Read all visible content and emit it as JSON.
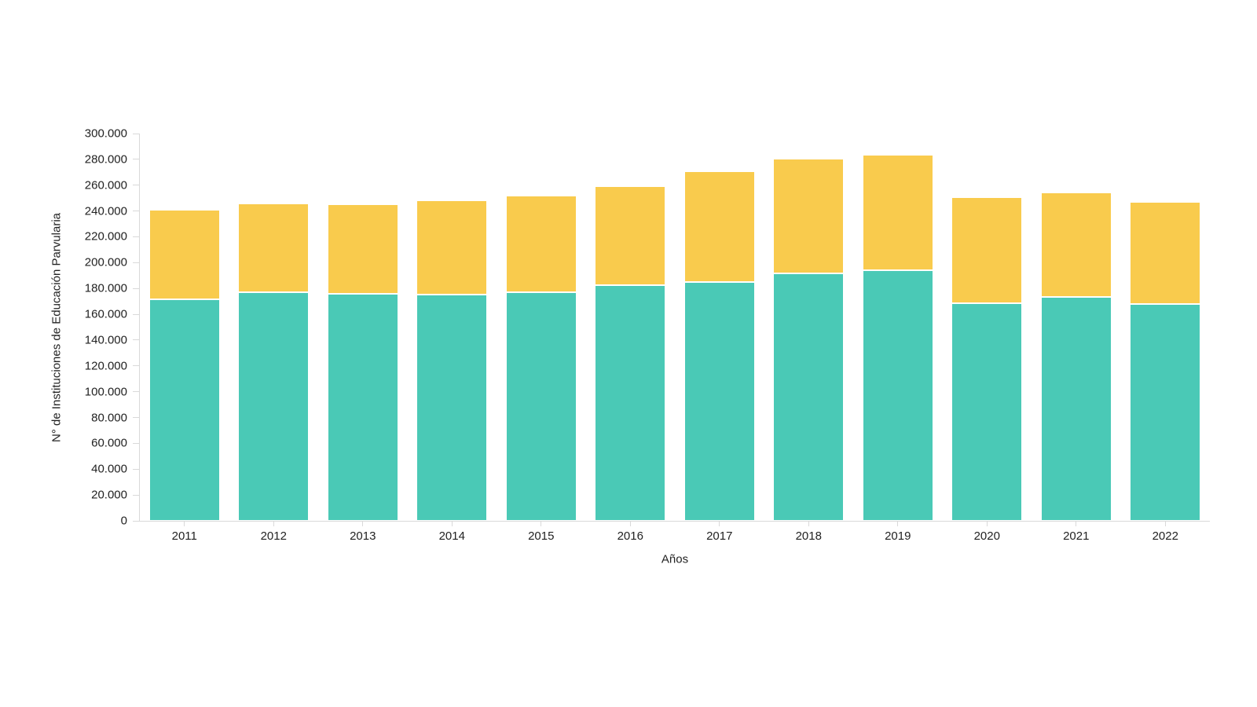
{
  "page": {
    "background": "#ffffff"
  },
  "chart_data": {
    "type": "bar",
    "stacked": true,
    "title": "",
    "xlabel": "Años",
    "ylabel": "N° de Instituciones de Educación Parvularia",
    "categories": [
      "2011",
      "2012",
      "2013",
      "2014",
      "2015",
      "2016",
      "2017",
      "2018",
      "2019",
      "2020",
      "2021",
      "2022"
    ],
    "series": [
      {
        "name": "bottom-segment",
        "color": "#4AC9B6",
        "values": [
          171500,
          177000,
          176000,
          175500,
          177000,
          182500,
          185000,
          191500,
          194000,
          168500,
          173500,
          168000
        ]
      },
      {
        "name": "top-segment",
        "color": "#F9CB4D",
        "values": [
          69500,
          69000,
          69500,
          72500,
          75000,
          77000,
          86000,
          89000,
          89500,
          82000,
          81000,
          79000
        ]
      }
    ],
    "stack_totals": [
      241000,
      246000,
      245500,
      248000,
      252000,
      259500,
      271000,
      280500,
      283500,
      250500,
      254500,
      247000
    ],
    "ylim": [
      0,
      300000
    ],
    "y_tick_step": 20000,
    "y_tick_labels": [
      "0",
      "20.000",
      "40.000",
      "60.000",
      "80.000",
      "100.000",
      "120.000",
      "140.000",
      "160.000",
      "180.000",
      "200.000",
      "220.000",
      "240.000",
      "260.000",
      "280.000",
      "300.000"
    ],
    "grid": false,
    "legend_position": "none",
    "axis_color": "#d9d9d9",
    "text_color": "#222222"
  }
}
